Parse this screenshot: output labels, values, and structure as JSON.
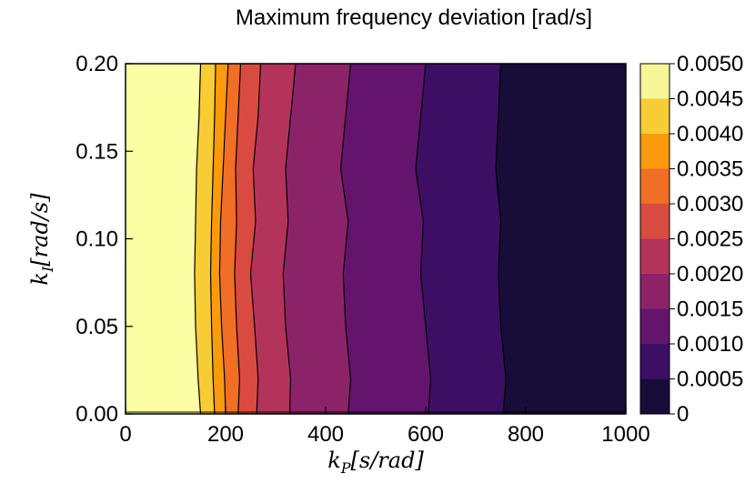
{
  "chart_data": {
    "type": "contour",
    "title": "Maximum frequency deviation [rad/s]",
    "xlabel": {
      "main": "k",
      "sub": "P",
      "rest": "[s/rad]"
    },
    "ylabel": {
      "main": "k",
      "sub": "I",
      "rest": "[rad/s]"
    },
    "xlim": [
      0,
      1000
    ],
    "ylim": [
      0,
      0.2
    ],
    "x_ticks": [
      0,
      200,
      400,
      600,
      800,
      1000
    ],
    "x_tick_labels": [
      "0",
      "200",
      "400",
      "600",
      "800",
      "1000"
    ],
    "y_ticks": [
      0,
      0.05,
      0.1,
      0.15,
      0.2
    ],
    "y_tick_labels": [
      "0.00",
      "0.05",
      "0.10",
      "0.15",
      "0.20"
    ],
    "colorbar": {
      "levels": [
        0,
        0.0005,
        0.001,
        0.0015,
        0.002,
        0.0025,
        0.003,
        0.0035,
        0.004,
        0.0045,
        0.005
      ],
      "tick_labels": [
        "0",
        "0.0005",
        "0.0010",
        "0.0015",
        "0.0020",
        "0.0025",
        "0.0030",
        "0.0035",
        "0.0040",
        "0.0045",
        "0.0050"
      ],
      "colors": [
        "#000004",
        "#180d39",
        "#3d0f64",
        "#65146e",
        "#8c2369",
        "#b4335b",
        "#d94b41",
        "#f06e25",
        "#fb9a0c",
        "#f8cc35",
        "#f6f698",
        "#fcfea4"
      ]
    },
    "colormap": "inferno",
    "boundaries": [
      {
        "level": 0.0045,
        "x": [
          150,
          147,
          142,
          140,
          138,
          140,
          145,
          150
        ],
        "y": [
          0.2,
          0.17,
          0.14,
          0.11,
          0.08,
          0.05,
          0.02,
          0
        ]
      },
      {
        "level": 0.004,
        "x": [
          180,
          178,
          175,
          172,
          170,
          172,
          175,
          178
        ],
        "y": [
          0.2,
          0.17,
          0.14,
          0.11,
          0.08,
          0.05,
          0.02,
          0
        ]
      },
      {
        "level": 0.0035,
        "x": [
          205,
          200,
          195,
          190,
          188,
          192,
          198,
          200
        ],
        "y": [
          0.2,
          0.17,
          0.14,
          0.11,
          0.08,
          0.05,
          0.02,
          0
        ]
      },
      {
        "level": 0.003,
        "x": [
          230,
          225,
          220,
          222,
          218,
          222,
          228,
          225
        ],
        "y": [
          0.2,
          0.17,
          0.14,
          0.11,
          0.08,
          0.05,
          0.02,
          0
        ]
      },
      {
        "level": 0.0025,
        "x": [
          270,
          265,
          255,
          260,
          250,
          258,
          265,
          262
        ],
        "y": [
          0.2,
          0.17,
          0.14,
          0.11,
          0.08,
          0.05,
          0.02,
          0
        ]
      },
      {
        "level": 0.002,
        "x": [
          340,
          330,
          320,
          325,
          315,
          320,
          330,
          328
        ],
        "y": [
          0.2,
          0.17,
          0.14,
          0.11,
          0.08,
          0.05,
          0.02,
          0
        ]
      },
      {
        "level": 0.0015,
        "x": [
          450,
          440,
          430,
          445,
          435,
          440,
          450,
          445
        ],
        "y": [
          0.2,
          0.17,
          0.14,
          0.11,
          0.08,
          0.05,
          0.02,
          0
        ]
      },
      {
        "level": 0.001,
        "x": [
          600,
          590,
          580,
          595,
          590,
          600,
          610,
          605
        ],
        "y": [
          0.2,
          0.17,
          0.14,
          0.11,
          0.08,
          0.05,
          0.02,
          0
        ]
      },
      {
        "level": 0.0005,
        "x": [
          750,
          745,
          740,
          750,
          745,
          750,
          760,
          755
        ],
        "y": [
          0.2,
          0.17,
          0.14,
          0.11,
          0.08,
          0.05,
          0.02,
          0
        ]
      }
    ],
    "grid": false
  }
}
